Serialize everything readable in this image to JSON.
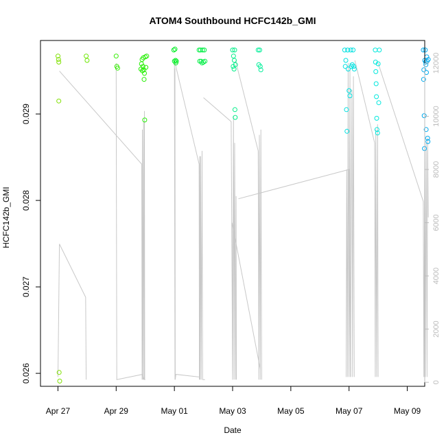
{
  "chart_data": {
    "type": "scatter",
    "title": "ATOM4 Southbound HCFC142b_GMI",
    "xlabel": "Date",
    "ylabel": "HCFC142b_GMI",
    "x_range_days": [
      -0.6,
      12.6
    ],
    "ylim": [
      0.02585,
      0.02985
    ],
    "y2lim": [
      -150,
      12850
    ],
    "x_ticks": [
      {
        "day": 0,
        "label": "Apr 27"
      },
      {
        "day": 2,
        "label": "Apr 29"
      },
      {
        "day": 4,
        "label": "May 01"
      },
      {
        "day": 6,
        "label": "May 03"
      },
      {
        "day": 8,
        "label": "May 05"
      },
      {
        "day": 10,
        "label": "May 07"
      },
      {
        "day": 12,
        "label": "May 09"
      }
    ],
    "y_ticks": [
      {
        "value": 0.026,
        "label": "0.026"
      },
      {
        "value": 0.027,
        "label": "0.027"
      },
      {
        "value": 0.028,
        "label": "0.028"
      },
      {
        "value": 0.029,
        "label": "0.029"
      }
    ],
    "y2_ticks": [
      {
        "value": 0,
        "label": "0"
      },
      {
        "value": 2000,
        "label": "2000"
      },
      {
        "value": 4000,
        "label": "4000"
      },
      {
        "value": 6000,
        "label": "6000"
      },
      {
        "value": 8000,
        "label": "8000"
      },
      {
        "value": 10000,
        "label": "10000"
      },
      {
        "value": 12000,
        "label": "12000"
      }
    ],
    "grid": false,
    "legend": "none",
    "colors": {
      "altitude_line": "#c8c8c8",
      "axis": "#000000",
      "right_axis": "#bbbbbb"
    },
    "points": [
      {
        "x": 0.0,
        "y": 0.02967,
        "c": "#7fe000"
      },
      {
        "x": 0.02,
        "y": 0.02963,
        "c": "#7fe000"
      },
      {
        "x": 0.03,
        "y": 0.0296,
        "c": "#7fe000"
      },
      {
        "x": 0.03,
        "y": 0.02915,
        "c": "#7fe000"
      },
      {
        "x": 0.04,
        "y": 0.02601,
        "c": "#7fe000"
      },
      {
        "x": 0.06,
        "y": 0.02591,
        "c": "#7fe000"
      },
      {
        "x": 0.97,
        "y": 0.02967,
        "c": "#6ce800"
      },
      {
        "x": 1.0,
        "y": 0.02962,
        "c": "#6ce800"
      },
      {
        "x": 2.0,
        "y": 0.02967,
        "c": "#33ee00"
      },
      {
        "x": 2.02,
        "y": 0.02955,
        "c": "#33ee00"
      },
      {
        "x": 2.05,
        "y": 0.02953,
        "c": "#33ee00"
      },
      {
        "x": 2.85,
        "y": 0.02952,
        "c": "#22ee00"
      },
      {
        "x": 2.87,
        "y": 0.02958,
        "c": "#22ee00"
      },
      {
        "x": 2.89,
        "y": 0.02963,
        "c": "#22ee00"
      },
      {
        "x": 2.9,
        "y": 0.0295,
        "c": "#22ee00"
      },
      {
        "x": 2.92,
        "y": 0.02955,
        "c": "#22ee00"
      },
      {
        "x": 2.93,
        "y": 0.02965,
        "c": "#22ee00"
      },
      {
        "x": 2.95,
        "y": 0.02951,
        "c": "#22ee00"
      },
      {
        "x": 2.96,
        "y": 0.0294,
        "c": "#22ee00"
      },
      {
        "x": 2.97,
        "y": 0.02947,
        "c": "#22ee00"
      },
      {
        "x": 2.98,
        "y": 0.02893,
        "c": "#22ee00"
      },
      {
        "x": 3.0,
        "y": 0.02966,
        "c": "#22ee00"
      },
      {
        "x": 3.02,
        "y": 0.02954,
        "c": "#22ee00"
      },
      {
        "x": 3.05,
        "y": 0.02967,
        "c": "#22ee00"
      },
      {
        "x": 3.98,
        "y": 0.02974,
        "c": "#00ee22"
      },
      {
        "x": 4.0,
        "y": 0.02961,
        "c": "#00ee22"
      },
      {
        "x": 4.02,
        "y": 0.02975,
        "c": "#00ee22"
      },
      {
        "x": 4.04,
        "y": 0.02962,
        "c": "#00ee22"
      },
      {
        "x": 4.05,
        "y": 0.02959,
        "c": "#00ee22"
      },
      {
        "x": 4.07,
        "y": 0.02961,
        "c": "#00ee22"
      },
      {
        "x": 4.85,
        "y": 0.02974,
        "c": "#00ee44"
      },
      {
        "x": 4.87,
        "y": 0.02961,
        "c": "#00ee44"
      },
      {
        "x": 4.9,
        "y": 0.02974,
        "c": "#00ee44"
      },
      {
        "x": 4.92,
        "y": 0.02961,
        "c": "#00ee44"
      },
      {
        "x": 4.95,
        "y": 0.02959,
        "c": "#00ee44"
      },
      {
        "x": 4.97,
        "y": 0.02974,
        "c": "#00ee44"
      },
      {
        "x": 5.0,
        "y": 0.0296,
        "c": "#00ee44"
      },
      {
        "x": 5.03,
        "y": 0.02974,
        "c": "#00ee44"
      },
      {
        "x": 5.05,
        "y": 0.02961,
        "c": "#00ee44"
      },
      {
        "x": 6.0,
        "y": 0.02974,
        "c": "#00ee88"
      },
      {
        "x": 6.02,
        "y": 0.02955,
        "c": "#00ee88"
      },
      {
        "x": 6.03,
        "y": 0.02967,
        "c": "#00ee88"
      },
      {
        "x": 6.05,
        "y": 0.02952,
        "c": "#00ee88"
      },
      {
        "x": 6.06,
        "y": 0.02962,
        "c": "#00ee88"
      },
      {
        "x": 6.07,
        "y": 0.02974,
        "c": "#00ee88"
      },
      {
        "x": 6.08,
        "y": 0.02905,
        "c": "#00ee88"
      },
      {
        "x": 6.09,
        "y": 0.02896,
        "c": "#00ee88"
      },
      {
        "x": 6.1,
        "y": 0.02957,
        "c": "#00ee88"
      },
      {
        "x": 6.88,
        "y": 0.02974,
        "c": "#00ee99"
      },
      {
        "x": 6.9,
        "y": 0.02957,
        "c": "#00ee99"
      },
      {
        "x": 6.93,
        "y": 0.02974,
        "c": "#00ee99"
      },
      {
        "x": 6.95,
        "y": 0.02955,
        "c": "#00ee99"
      },
      {
        "x": 6.97,
        "y": 0.02951,
        "c": "#00ee99"
      },
      {
        "x": 9.85,
        "y": 0.02974,
        "c": "#00e0e0"
      },
      {
        "x": 9.87,
        "y": 0.02955,
        "c": "#00e0e0"
      },
      {
        "x": 9.89,
        "y": 0.02962,
        "c": "#00e0e0"
      },
      {
        "x": 9.91,
        "y": 0.02905,
        "c": "#00e0e0"
      },
      {
        "x": 9.93,
        "y": 0.0288,
        "c": "#00e0e0"
      },
      {
        "x": 9.95,
        "y": 0.02974,
        "c": "#00e0e0"
      },
      {
        "x": 9.97,
        "y": 0.02952,
        "c": "#00e0e0"
      },
      {
        "x": 10.0,
        "y": 0.02927,
        "c": "#00e0e0"
      },
      {
        "x": 10.03,
        "y": 0.02921,
        "c": "#00e0e0"
      },
      {
        "x": 10.06,
        "y": 0.02974,
        "c": "#00e0e0"
      },
      {
        "x": 10.08,
        "y": 0.02955,
        "c": "#00e0e0"
      },
      {
        "x": 10.11,
        "y": 0.02957,
        "c": "#00e0e0"
      },
      {
        "x": 10.14,
        "y": 0.02974,
        "c": "#00e0e0"
      },
      {
        "x": 10.16,
        "y": 0.02955,
        "c": "#00e0e0"
      },
      {
        "x": 10.18,
        "y": 0.02952,
        "c": "#00e0e0"
      },
      {
        "x": 10.9,
        "y": 0.02974,
        "c": "#00e8dd"
      },
      {
        "x": 10.91,
        "y": 0.0296,
        "c": "#00e8dd"
      },
      {
        "x": 10.92,
        "y": 0.02949,
        "c": "#00e8dd"
      },
      {
        "x": 10.93,
        "y": 0.02935,
        "c": "#00e8dd"
      },
      {
        "x": 10.94,
        "y": 0.0292,
        "c": "#00e8dd"
      },
      {
        "x": 10.95,
        "y": 0.02895,
        "c": "#00e8dd"
      },
      {
        "x": 10.96,
        "y": 0.02882,
        "c": "#00e8dd"
      },
      {
        "x": 10.98,
        "y": 0.02878,
        "c": "#00e8dd"
      },
      {
        "x": 11.0,
        "y": 0.02958,
        "c": "#00e8dd"
      },
      {
        "x": 11.02,
        "y": 0.02913,
        "c": "#00e8dd"
      },
      {
        "x": 11.04,
        "y": 0.02974,
        "c": "#00e8dd"
      },
      {
        "x": 12.55,
        "y": 0.02974,
        "c": "#00aaee"
      },
      {
        "x": 12.56,
        "y": 0.0294,
        "c": "#00aaee"
      },
      {
        "x": 12.57,
        "y": 0.02951,
        "c": "#00aaee"
      },
      {
        "x": 12.58,
        "y": 0.02898,
        "c": "#00aaee"
      },
      {
        "x": 12.59,
        "y": 0.0286,
        "c": "#00aaee"
      },
      {
        "x": 12.6,
        "y": 0.02962,
        "c": "#00aaee"
      },
      {
        "x": 12.62,
        "y": 0.02974,
        "c": "#00aaee"
      },
      {
        "x": 12.63,
        "y": 0.0296,
        "c": "#00aaee"
      },
      {
        "x": 12.64,
        "y": 0.02957,
        "c": "#00aaee"
      },
      {
        "x": 12.65,
        "y": 0.02882,
        "c": "#00aaee"
      },
      {
        "x": 12.66,
        "y": 0.02948,
        "c": "#00aaee"
      },
      {
        "x": 12.67,
        "y": 0.02966,
        "c": "#00aaee"
      },
      {
        "x": 12.68,
        "y": 0.02961,
        "c": "#00aaee"
      },
      {
        "x": 12.7,
        "y": 0.02872,
        "c": "#00aaee"
      },
      {
        "x": 12.71,
        "y": 0.02868,
        "c": "#00aaee"
      },
      {
        "x": 12.72,
        "y": 0.02963,
        "c": "#00aaee"
      }
    ],
    "altitude_segments": [
      [
        [
          0.0,
          200
        ],
        [
          0.05,
          5200
        ],
        [
          0.95,
          3200
        ],
        [
          0.97,
          100
        ]
      ],
      [
        [
          0.05,
          11700
        ],
        [
          2.88,
          8200
        ],
        [
          2.89,
          100
        ],
        [
          2.9,
          9500
        ],
        [
          2.92,
          100
        ],
        [
          2.94,
          9800
        ],
        [
          2.96,
          100
        ],
        [
          2.97,
          10200
        ],
        [
          2.98,
          100
        ],
        [
          3.0,
          100
        ]
      ],
      [
        [
          2.0,
          12000
        ],
        [
          2.02,
          100
        ],
        [
          2.9,
          300
        ],
        [
          2.95,
          100
        ]
      ],
      [
        [
          4.0,
          12000
        ],
        [
          4.02,
          100
        ]
      ],
      [
        [
          4.0,
          12100
        ],
        [
          4.85,
          8200
        ],
        [
          4.86,
          100
        ],
        [
          4.87,
          8500
        ],
        [
          4.88,
          100
        ],
        [
          4.9,
          8500
        ],
        [
          4.92,
          100
        ],
        [
          4.95,
          8700
        ],
        [
          4.97,
          100
        ],
        [
          5.0,
          100
        ],
        [
          5.05,
          100
        ]
      ],
      [
        [
          4.02,
          11800
        ],
        [
          4.03,
          100
        ],
        [
          4.05,
          300
        ],
        [
          4.85,
          200
        ]
      ],
      [
        [
          5.0,
          10700
        ],
        [
          5.95,
          9800
        ],
        [
          6.0,
          100
        ],
        [
          6.03,
          10000
        ],
        [
          6.05,
          100
        ],
        [
          6.07,
          9000
        ],
        [
          6.1,
          100
        ],
        [
          6.12,
          7000
        ],
        [
          6.13,
          100
        ]
      ],
      [
        [
          6.1,
          12100
        ],
        [
          6.88,
          8700
        ],
        [
          6.9,
          100
        ],
        [
          6.92,
          9300
        ],
        [
          6.95,
          100
        ],
        [
          6.97,
          9500
        ],
        [
          7.0,
          100
        ]
      ],
      [
        [
          6.2,
          6900
        ],
        [
          10.0,
          8000
        ],
        [
          10.05,
          200
        ],
        [
          10.1,
          11000
        ],
        [
          10.12,
          200
        ],
        [
          10.15,
          11500
        ],
        [
          10.18,
          200
        ]
      ],
      [
        [
          6.95,
          500
        ],
        [
          5.98,
          6000
        ],
        [
          6.0,
          100
        ]
      ],
      [
        [
          9.9,
          200
        ],
        [
          9.92,
          8000
        ],
        [
          9.95,
          200
        ],
        [
          9.97,
          12000
        ],
        [
          10.0,
          200
        ],
        [
          10.03,
          12000
        ],
        [
          10.06,
          200
        ]
      ],
      [
        [
          10.2,
          12100
        ],
        [
          10.88,
          9000
        ],
        [
          10.9,
          200
        ],
        [
          10.92,
          9500
        ],
        [
          10.95,
          200
        ],
        [
          10.98,
          9700
        ],
        [
          11.0,
          200
        ]
      ],
      [
        [
          11.0,
          12000
        ],
        [
          12.55,
          6800
        ],
        [
          12.57,
          200
        ],
        [
          12.6,
          8800
        ],
        [
          12.62,
          200
        ],
        [
          12.65,
          9000
        ],
        [
          12.68,
          200
        ],
        [
          12.7,
          9200
        ],
        [
          12.72,
          6200
        ]
      ]
    ]
  }
}
